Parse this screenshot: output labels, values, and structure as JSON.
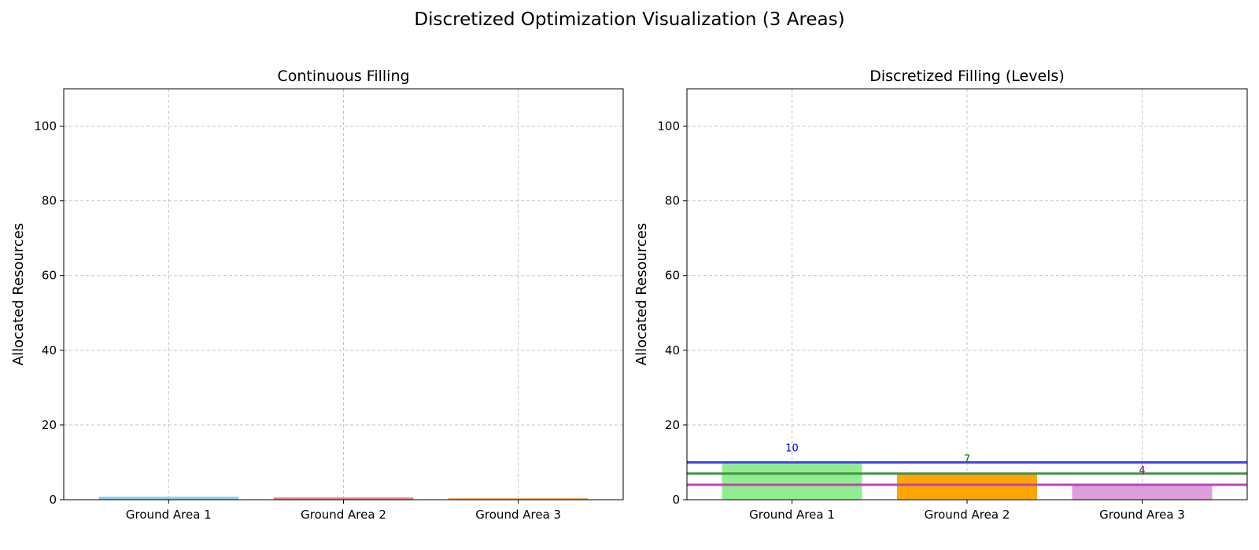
{
  "figure": {
    "title": "Discretized Optimization Visualization (3 Areas)"
  },
  "chart_data": [
    {
      "type": "bar",
      "title": "Continuous Filling",
      "xlabel": "",
      "ylabel": "Allocated Resources",
      "ylim": [
        0,
        110
      ],
      "yticks": [
        "0",
        "20",
        "40",
        "60",
        "80",
        "100"
      ],
      "grid": true,
      "categories": [
        "Ground Area 1",
        "Ground Area 2",
        "Ground Area 3"
      ],
      "values": [
        0.8,
        0.6,
        0.4
      ],
      "colors": [
        "#87ceeb",
        "#f08080",
        "#f4a460"
      ]
    },
    {
      "type": "bar",
      "title": "Discretized Filling (Levels)",
      "xlabel": "",
      "ylabel": "Allocated Resources",
      "ylim": [
        0,
        110
      ],
      "yticks": [
        "0",
        "20",
        "40",
        "60",
        "80",
        "100"
      ],
      "grid": true,
      "categories": [
        "Ground Area 1",
        "Ground Area 2",
        "Ground Area 3"
      ],
      "values": [
        10,
        7,
        4
      ],
      "colors": [
        "#90ee90",
        "#ffa500",
        "#dda0dd"
      ],
      "bar_labels": [
        "10",
        "7",
        "4"
      ],
      "bar_label_colors": [
        "#0000ff",
        "#008000",
        "#800080"
      ],
      "level_lines": [
        {
          "y": 10,
          "color": "#4444ee"
        },
        {
          "y": 7,
          "color": "#4a8f4a"
        },
        {
          "y": 4,
          "color": "#bb44bb"
        }
      ]
    }
  ]
}
